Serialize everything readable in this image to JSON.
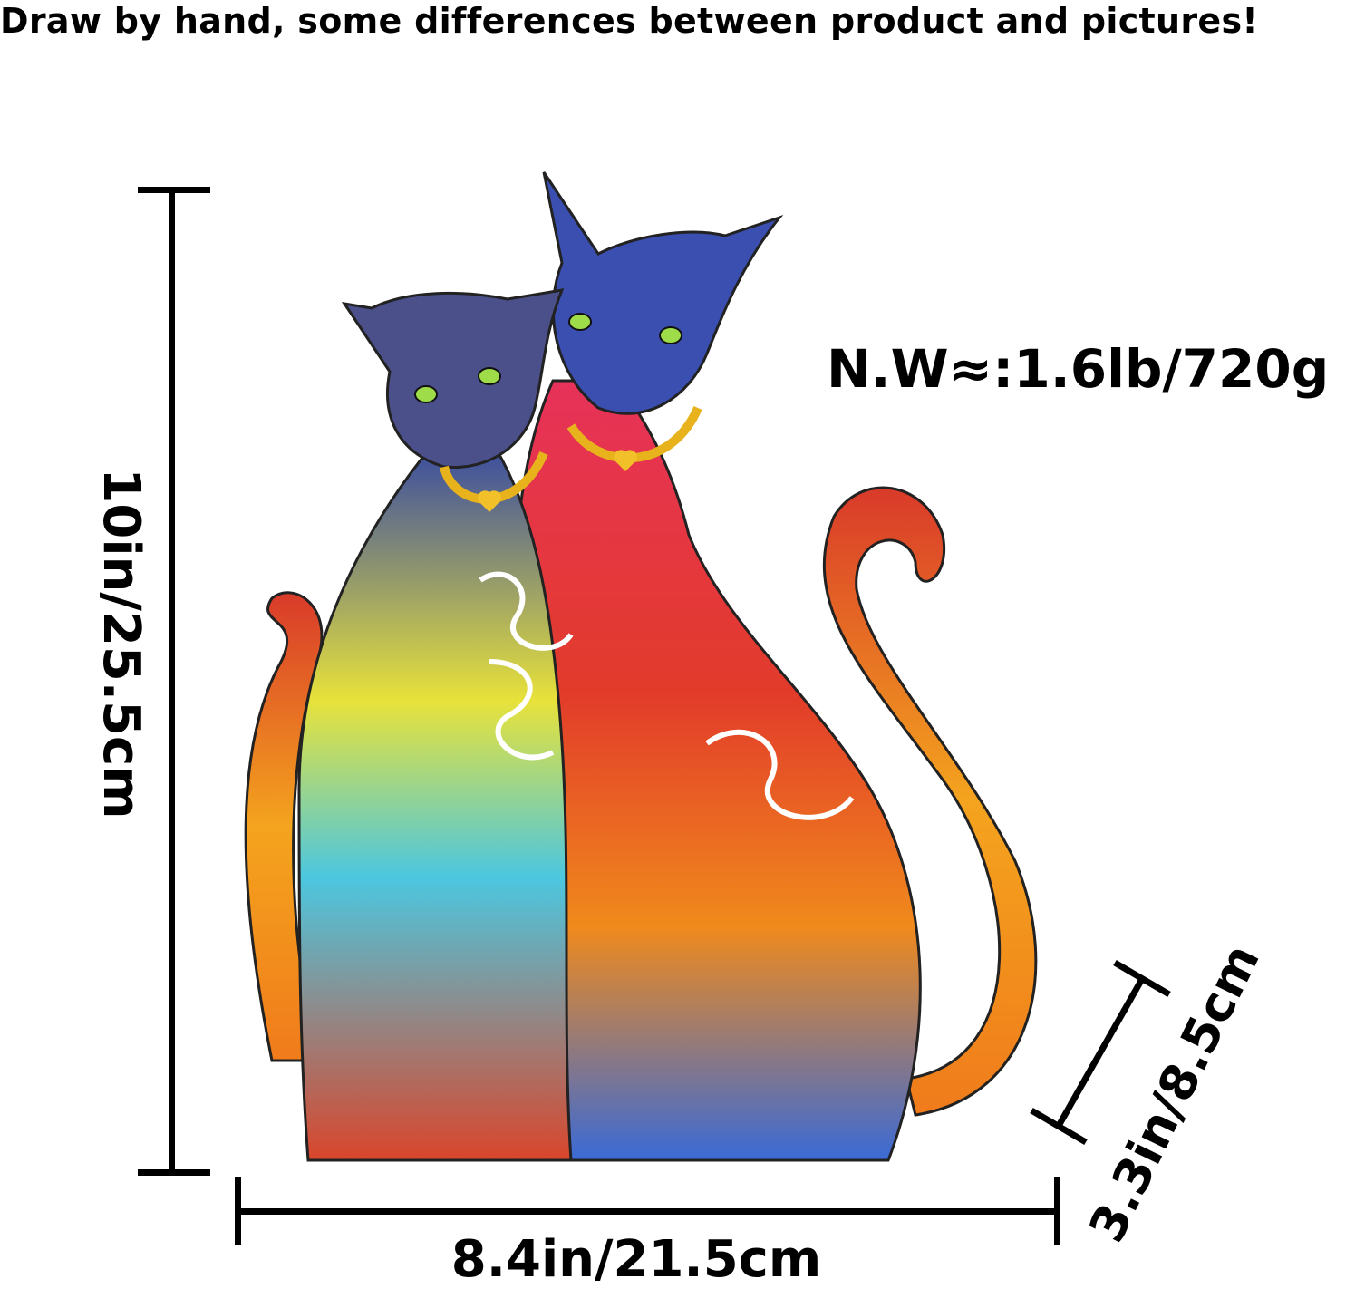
{
  "notice": "Draw by hand, some differences between product and pictures!",
  "net_weight": "N.W≈:1.6lb/720g",
  "dimensions": {
    "height": "10in/25.5cm",
    "width": "8.4in/21.5cm",
    "depth": "3.3in/8.5cm"
  },
  "colors": {
    "text": "#000000",
    "background": "#ffffff"
  }
}
